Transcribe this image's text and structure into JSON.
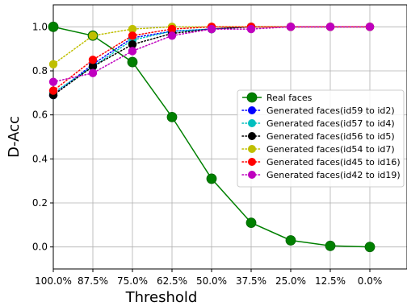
{
  "chart_data": {
    "type": "line",
    "title": "",
    "xlabel": "Threshold",
    "ylabel": "D-Acc",
    "categories": [
      "100.0%",
      "87.5%",
      "75.0%",
      "62.5%",
      "50.0%",
      "37.5%",
      "25.0%",
      "12.5%",
      "0.0%"
    ],
    "ylim": [
      -0.1,
      1.1
    ],
    "yticks": [
      0.0,
      0.2,
      0.4,
      0.6,
      0.8,
      1.0
    ],
    "ytick_labels": [
      "0.0",
      "0.2",
      "0.4",
      "0.6",
      "0.8",
      "1.0"
    ],
    "grid": true,
    "legend_position": "center-right",
    "series": [
      {
        "name": "Real faces",
        "color": "#008000",
        "style": "solid",
        "values": [
          1.0,
          0.96,
          0.84,
          0.59,
          0.31,
          0.11,
          0.03,
          0.005,
          0.0
        ]
      },
      {
        "name": "Generated faces(id59 to id2)",
        "color": "#0000ff",
        "style": "dotted",
        "values": [
          0.69,
          0.83,
          0.95,
          0.98,
          0.99,
          1.0,
          1.0,
          1.0,
          1.0
        ]
      },
      {
        "name": "Generated faces(id57 to id4)",
        "color": "#00bfbf",
        "style": "dotted",
        "values": [
          0.7,
          0.82,
          0.94,
          0.98,
          0.99,
          1.0,
          1.0,
          1.0,
          1.0
        ]
      },
      {
        "name": "Generated faces(id56 to id5)",
        "color": "#000000",
        "style": "dotted",
        "values": [
          0.69,
          0.82,
          0.92,
          0.97,
          0.99,
          1.0,
          1.0,
          1.0,
          1.0
        ]
      },
      {
        "name": "Generated faces(id54 to id7)",
        "color": "#bfbf00",
        "style": "dotted",
        "values": [
          0.83,
          0.96,
          0.99,
          1.0,
          1.0,
          1.0,
          1.0,
          1.0,
          1.0
        ]
      },
      {
        "name": "Generated faces(id45 to id16)",
        "color": "#ff0000",
        "style": "dotted",
        "values": [
          0.71,
          0.85,
          0.96,
          0.99,
          1.0,
          1.0,
          1.0,
          1.0,
          1.0
        ]
      },
      {
        "name": "Generated faces(id42 to id19)",
        "color": "#bf00bf",
        "style": "dotted",
        "values": [
          0.75,
          0.79,
          0.89,
          0.96,
          0.99,
          0.99,
          1.0,
          1.0,
          1.0
        ]
      }
    ]
  }
}
